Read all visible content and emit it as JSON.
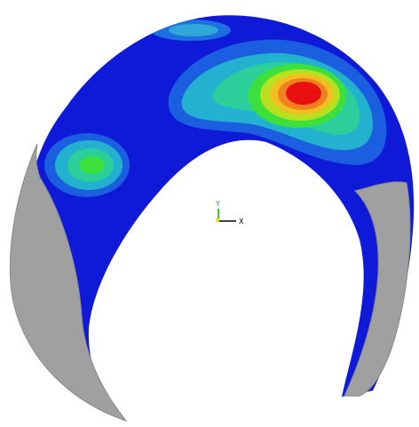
{
  "triad": {
    "y_label": "Y",
    "x_label": "X"
  }
}
